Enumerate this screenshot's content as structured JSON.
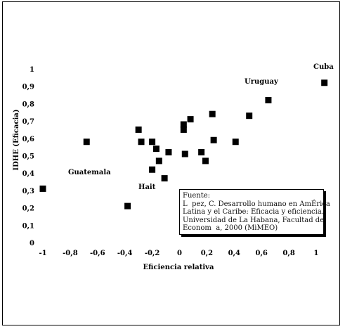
{
  "chart_data": {
    "type": "scatter",
    "title": "",
    "xlabel": "Eficiencia relativa",
    "ylabel": "IDHE (Eficacia)",
    "xlim": [
      -1,
      1
    ],
    "ylim": [
      0,
      1
    ],
    "x_ticks": [
      "-1",
      "-0,8",
      "-0,6",
      "-0,4",
      "-0,2",
      "0",
      "0,2",
      "0,4",
      "0,6",
      "0,8",
      "1"
    ],
    "y_ticks": [
      "0",
      "0,1",
      "0,2",
      "0,3",
      "0,4",
      "0,5",
      "0,6",
      "0,7",
      "0,8",
      "0,9",
      "1"
    ],
    "grid": false,
    "legend": "none",
    "marker_color": "#000000",
    "points": [
      {
        "x": -1.0,
        "y": 0.31
      },
      {
        "x": -0.68,
        "y": 0.58
      },
      {
        "x": -0.38,
        "y": 0.21
      },
      {
        "x": -0.3,
        "y": 0.65
      },
      {
        "x": -0.28,
        "y": 0.58
      },
      {
        "x": -0.2,
        "y": 0.58
      },
      {
        "x": -0.2,
        "y": 0.42
      },
      {
        "x": -0.17,
        "y": 0.54
      },
      {
        "x": -0.15,
        "y": 0.47
      },
      {
        "x": -0.11,
        "y": 0.37
      },
      {
        "x": -0.08,
        "y": 0.52
      },
      {
        "x": 0.03,
        "y": 0.68
      },
      {
        "x": 0.03,
        "y": 0.65
      },
      {
        "x": 0.04,
        "y": 0.51
      },
      {
        "x": 0.08,
        "y": 0.71
      },
      {
        "x": 0.16,
        "y": 0.52
      },
      {
        "x": 0.19,
        "y": 0.47
      },
      {
        "x": 0.24,
        "y": 0.74
      },
      {
        "x": 0.25,
        "y": 0.59
      },
      {
        "x": 0.41,
        "y": 0.58
      },
      {
        "x": 0.51,
        "y": 0.73
      },
      {
        "x": 0.65,
        "y": 0.82
      },
      {
        "x": 1.06,
        "y": 0.92
      }
    ],
    "annotations": [
      "Cuba",
      "Uruguay",
      "Guatemala",
      "Hait"
    ]
  },
  "source_note": {
    "lines": [
      "Fuente:",
      "L  pez, C. Desarrollo humano en AmÉrica",
      "Latina y el Caribe: Eficacia y eficiencia.",
      "Universidad de La Habana, Facultad de",
      "Econom  a, 2000 (MiMEO)"
    ]
  }
}
